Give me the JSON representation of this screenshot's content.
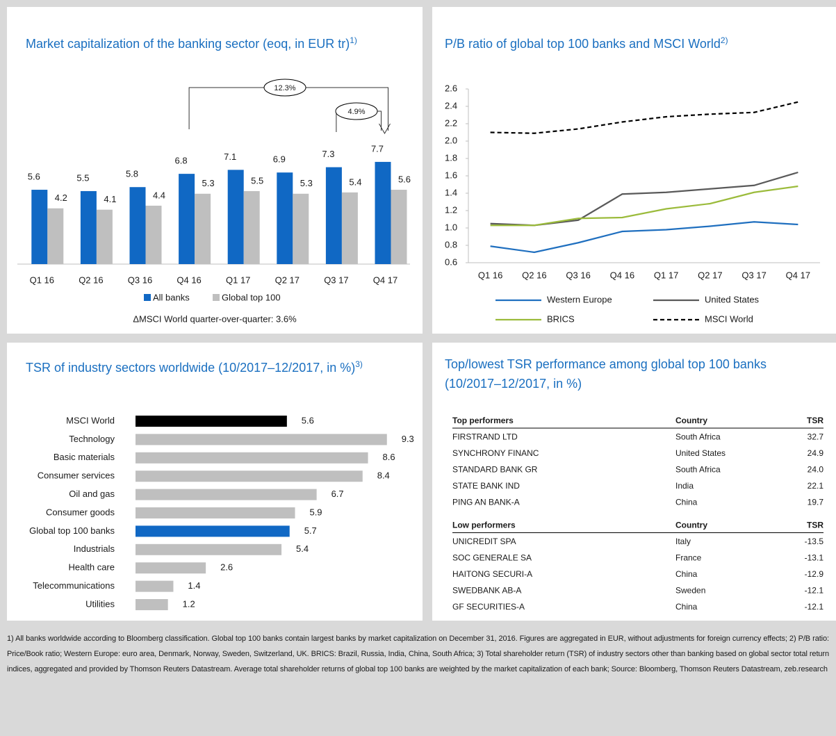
{
  "chart_data": [
    {
      "type": "bar",
      "title": "Market capitalization of the banking sector (eoq, in EUR tr)",
      "title_note": "1)",
      "categories": [
        "Q1 16",
        "Q2 16",
        "Q3 16",
        "Q4 16",
        "Q1 17",
        "Q2 17",
        "Q3 17",
        "Q4 17"
      ],
      "series": [
        {
          "name": "All banks",
          "color": "#1068c4",
          "values": [
            5.6,
            5.5,
            5.8,
            6.8,
            7.1,
            6.9,
            7.3,
            7.7
          ]
        },
        {
          "name": "Global top 100",
          "color": "#bfbfbf",
          "values": [
            4.2,
            4.1,
            4.4,
            5.3,
            5.5,
            5.3,
            5.4,
            5.6
          ]
        }
      ],
      "annotations": [
        "12.3%",
        "4.9%"
      ],
      "note": "ΔMSCI World quarter-over-quarter: 3.6%"
    },
    {
      "type": "line",
      "title": "P/B ratio of global top 100 banks and MSCI World",
      "title_note": "2)",
      "categories": [
        "Q1 16",
        "Q2 16",
        "Q3 16",
        "Q4 16",
        "Q1 17",
        "Q2 17",
        "Q3 17",
        "Q4 17"
      ],
      "ylim": [
        0.6,
        2.6
      ],
      "yticks": [
        0.6,
        0.8,
        {
          "value": 1,
          "label": "1.0"
        },
        1.2,
        1.4,
        1.6,
        1.8,
        {
          "value": 2,
          "label": "2.0"
        },
        2.2,
        2.4,
        2.6
      ],
      "series": [
        {
          "name": "Western Europe",
          "color": "#1f6fbf",
          "dash": false,
          "values": [
            0.79,
            0.72,
            0.83,
            0.96,
            0.98,
            1.02,
            1.07,
            1.04
          ]
        },
        {
          "name": "United States",
          "color": "#595959",
          "dash": false,
          "values": [
            1.05,
            1.03,
            1.09,
            1.39,
            1.41,
            1.45,
            1.49,
            1.64
          ]
        },
        {
          "name": "BRICS",
          "color": "#9bbb3b",
          "dash": false,
          "values": [
            1.03,
            1.03,
            1.11,
            1.12,
            1.22,
            1.28,
            1.41,
            1.48
          ]
        },
        {
          "name": "MSCI World",
          "color": "#000000",
          "dash": true,
          "values": [
            2.1,
            2.09,
            2.14,
            2.22,
            2.28,
            2.31,
            2.33,
            2.45
          ]
        }
      ]
    },
    {
      "type": "hbar",
      "title": "TSR of industry sectors worldwide (10/2017–12/2017, in %)",
      "title_note": "3)",
      "categories": [
        "MSCI World",
        "Technology",
        "Basic materials",
        "Consumer services",
        "Oil and gas",
        "Consumer goods",
        "Global top 100 banks",
        "Industrials",
        "Health care",
        "Telecommunications",
        "Utilities"
      ],
      "values": [
        5.6,
        9.3,
        8.6,
        8.4,
        6.7,
        5.9,
        5.7,
        5.4,
        2.6,
        1.4,
        1.2
      ],
      "colors": [
        "#000000",
        "#bfbfbf",
        "#bfbfbf",
        "#bfbfbf",
        "#bfbfbf",
        "#bfbfbf",
        "#1068c4",
        "#bfbfbf",
        "#bfbfbf",
        "#bfbfbf",
        "#bfbfbf"
      ]
    }
  ],
  "table": {
    "title": "Top/lowest TSR performance among global top 100 banks (10/2017–12/2017, in %)",
    "sections": [
      {
        "header": [
          "Top performers",
          "Country",
          "TSR"
        ],
        "rows": [
          [
            "FIRSTRAND LTD",
            "South Africa",
            "32.7"
          ],
          [
            "SYNCHRONY FINANC",
            "United States",
            "24.9"
          ],
          [
            "STANDARD BANK GR",
            "South Africa",
            "24.0"
          ],
          [
            "STATE BANK IND",
            "India",
            "22.1"
          ],
          [
            "PING AN BANK-A",
            "China",
            "19.7"
          ]
        ]
      },
      {
        "header": [
          "Low performers",
          "Country",
          "TSR"
        ],
        "rows": [
          [
            "UNICREDIT SPA",
            "Italy",
            "-13.5"
          ],
          [
            "SOC GENERALE SA",
            "France",
            "-13.1"
          ],
          [
            "HAITONG SECURI-A",
            "China",
            "-12.9"
          ],
          [
            "SWEDBANK AB-A",
            "Sweden",
            "-12.1"
          ],
          [
            "GF SECURITIES-A",
            "China",
            "-12.1"
          ]
        ]
      }
    ]
  },
  "footnote": "1) All banks worldwide according to Bloomberg classification. Global top 100 banks contain largest banks by market capitalization on December 31, 2016. Figures are aggregated in EUR, without adjustments for foreign currency effects; 2) P/B ratio: Price/Book ratio; Western Europe: euro area, Denmark, Norway, Sweden, Switzerland, UK. BRICS: Brazil, Russia, India, China, South Africa; 3) Total shareholder return (TSR) of industry sectors other than banking based on global sector total return indices, aggregated and provided by Thomson Reuters Datastream. Average total shareholder returns of global top 100 banks are weighted by the market capitalization of each bank; Source: Bloomberg, Thomson Reuters Datastream, zeb.research"
}
